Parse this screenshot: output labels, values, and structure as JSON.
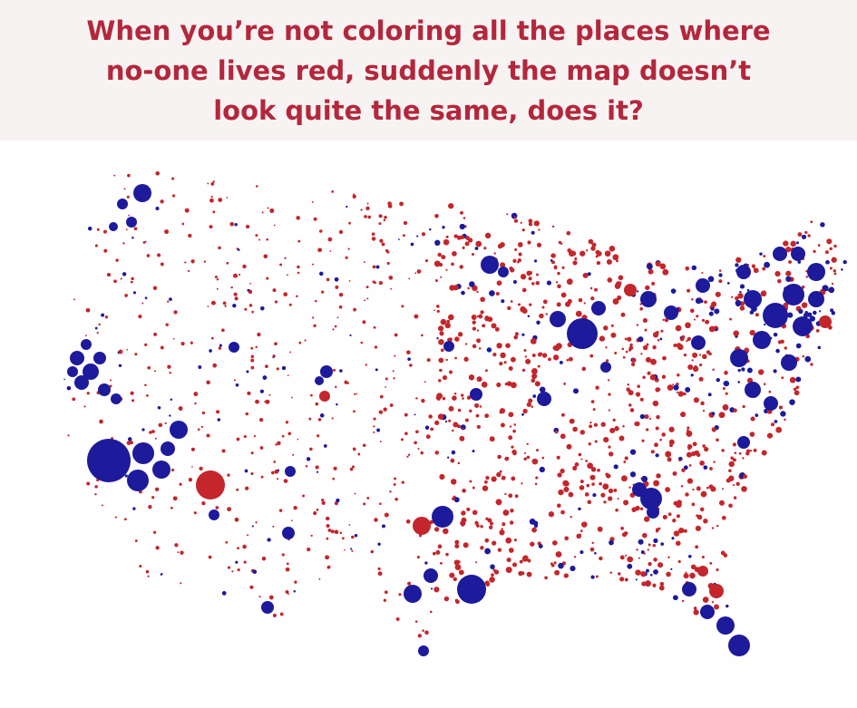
{
  "caption": {
    "lines": [
      "When you’re not coloring all the places where",
      "no-one lives red, suddenly the map doesn’t",
      "look quite the same, does it?"
    ]
  }
}
